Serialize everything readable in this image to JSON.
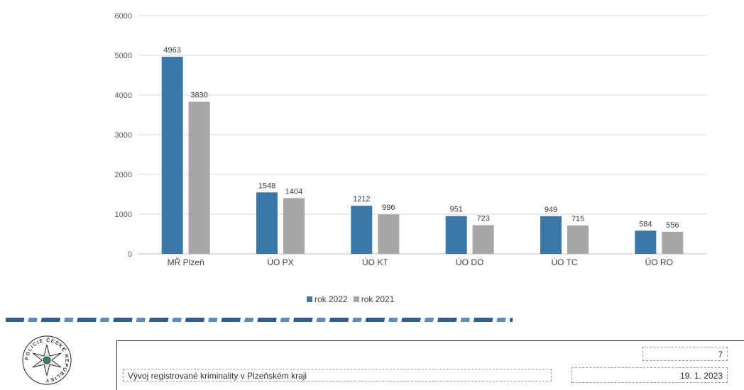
{
  "chart_data": {
    "type": "bar",
    "categories": [
      "MŘ Plzeň",
      "ÚO PX",
      "ÚO KT",
      "ÚO DO",
      "ÚO TC",
      "ÚO RO"
    ],
    "series": [
      {
        "name": "rok 2022",
        "values": [
          4963,
          1548,
          1212,
          951,
          949,
          584
        ],
        "color": "#3b78a8"
      },
      {
        "name": "rok 2021",
        "values": [
          3830,
          1404,
          996,
          723,
          715,
          556
        ],
        "color": "#a6a6a6"
      }
    ],
    "ylim": [
      0,
      6000
    ],
    "yticks": [
      0,
      1000,
      2000,
      3000,
      4000,
      5000,
      6000
    ],
    "grid": true,
    "legend_position": "bottom"
  },
  "footer": {
    "title": "Vývoj registrované kriminality v Plzeňském kraji",
    "page": "7",
    "date": "19. 1. 2023"
  },
  "logo": {
    "icon": "police-badge-icon",
    "text": "POLICIE ČESKÉ REPUBLIKY"
  }
}
